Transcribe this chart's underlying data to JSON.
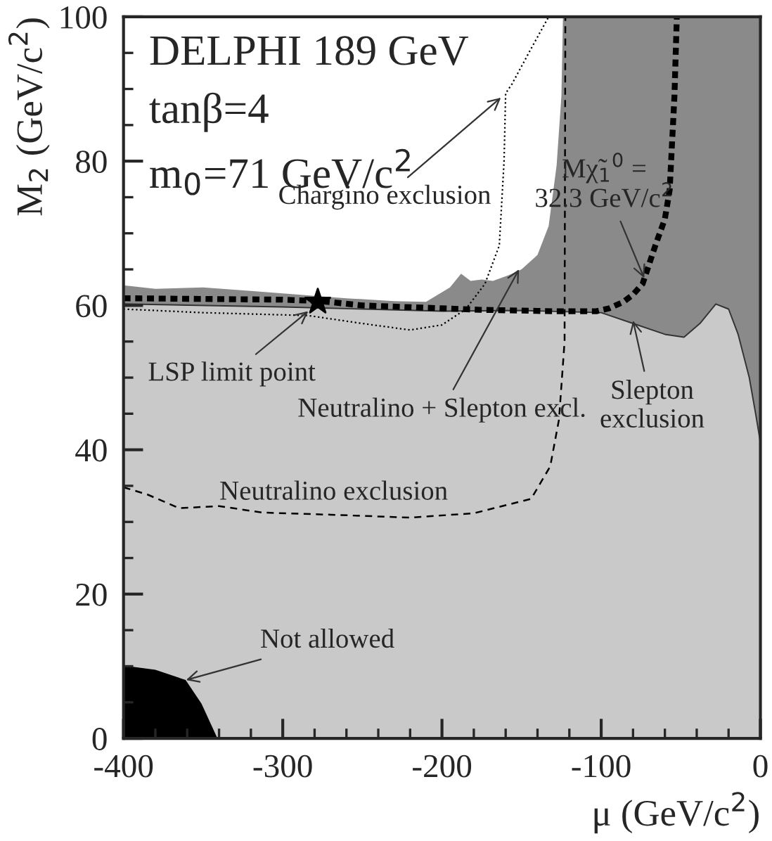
{
  "chart_data": {
    "type": "area",
    "xlabel": "μ (GeV/c$^{2}$)",
    "ylabel": "M$_{2}$ (GeV/c$^{2}$)",
    "xlim": [
      -400,
      0
    ],
    "ylim": [
      0,
      100
    ],
    "xticks": [
      -400,
      {
        "value": -380,
        "label": null
      },
      {
        "value": -360,
        "label": null
      },
      {
        "value": -340,
        "label": null
      },
      {
        "value": -320,
        "label": null
      },
      -300,
      {
        "value": -280,
        "label": null
      },
      {
        "value": -260,
        "label": null
      },
      {
        "value": -240,
        "label": null
      },
      {
        "value": -220,
        "label": null
      },
      -200,
      {
        "value": -180,
        "label": null
      },
      {
        "value": -160,
        "label": null
      },
      {
        "value": -140,
        "label": null
      },
      {
        "value": -120,
        "label": null
      },
      -100,
      {
        "value": -80,
        "label": null
      },
      {
        "value": -60,
        "label": null
      },
      {
        "value": -40,
        "label": null
      },
      {
        "value": -20,
        "label": null
      },
      0
    ],
    "yticks": [
      0,
      {
        "value": 5,
        "label": null
      },
      {
        "value": 10,
        "label": null
      },
      {
        "value": 15,
        "label": null
      },
      20,
      {
        "value": 25,
        "label": null
      },
      {
        "value": 30,
        "label": null
      },
      {
        "value": 35,
        "label": null
      },
      40,
      {
        "value": 45,
        "label": null
      },
      {
        "value": 50,
        "label": null
      },
      {
        "value": 55,
        "label": null
      },
      60,
      {
        "value": 65,
        "label": null
      },
      {
        "value": 70,
        "label": null
      },
      {
        "value": 75,
        "label": null
      },
      80,
      {
        "value": 85,
        "label": null
      },
      {
        "value": 90,
        "label": null
      },
      {
        "value": 95,
        "label": null
      },
      100
    ],
    "series": [
      {
        "color": "#8a8a8a",
        "x": [
          -400,
          -380,
          -350,
          -320,
          -290,
          -260,
          -230,
          -210,
          -195,
          -188,
          -182,
          -175,
          -168,
          -158,
          -150,
          -140,
          -133,
          -128,
          -125,
          -124,
          0
        ],
        "values": [
          62.8,
          62.3,
          62.5,
          62.0,
          61.5,
          61.0,
          60.6,
          60.5,
          62.5,
          64.4,
          63.4,
          63.6,
          63.4,
          64.2,
          65,
          67,
          71,
          79.4,
          89,
          100,
          100
        ]
      },
      {
        "color": "#c9c9c9",
        "x": [
          -400,
          -300,
          -200,
          -150,
          -100,
          -80,
          -60,
          -48,
          -38,
          -28,
          -20,
          -14,
          -7,
          -3,
          0
        ],
        "values": [
          60.2,
          59.8,
          59.2,
          59.3,
          59,
          57.5,
          56,
          55.6,
          57.5,
          60.2,
          59.5,
          56,
          50,
          45,
          41
        ]
      },
      {
        "color": "#000000",
        "x": [
          -400,
          -380,
          -361,
          -351,
          -341
        ],
        "values": [
          10.1,
          9.5,
          8.1,
          4.8,
          0
        ]
      },
      {
        "type": "line",
        "color": "#000000",
        "line_style": "dotted",
        "x": [
          -400,
          -350,
          -284,
          -250,
          -220,
          -200,
          -185,
          -173,
          -164,
          -161,
          -160,
          -156,
          -144,
          -133
        ],
        "values": [
          59.5,
          59.0,
          58.6,
          57.5,
          56.6,
          57.3,
          59.5,
          63,
          68.3,
          80,
          89.4,
          90.7,
          95.6,
          100
        ]
      },
      {
        "type": "line",
        "color": "#000000",
        "line_style": "dashed",
        "x": [
          -400,
          -385,
          -365,
          -340,
          -313,
          -270,
          -220,
          -180,
          -144,
          -132,
          -126.5,
          -123,
          -122.5
        ],
        "values": [
          34.8,
          33.8,
          31.9,
          32.2,
          31.3,
          31.0,
          30.6,
          31.2,
          33.2,
          37.7,
          44.2,
          55,
          100
        ]
      },
      {
        "type": "line",
        "color": "#000000",
        "line_style": "dashed",
        "x": [
          -400,
          -300,
          -276,
          -250,
          -200,
          -176,
          -130,
          -103,
          -95,
          -86,
          -80,
          -74,
          -66,
          -60,
          -57,
          -54,
          -52.5
        ],
        "values": [
          61,
          60.8,
          60.6,
          60.0,
          59.6,
          59.4,
          59.2,
          59.2,
          59.6,
          60.5,
          61.5,
          63,
          68.3,
          72,
          76,
          89,
          100
        ]
      },
      {
        "type": "scatter",
        "color": "#000000",
        "marker": "star",
        "x": [
          -278
        ],
        "values": [
          60.5
        ]
      }
    ],
    "annotations": [
      "DELPHI 189 GeV",
      "tanβ=4",
      "m$_{0}$=71 GeV/c$^{2}$",
      {
        "text": "Chargino exclusion",
        "x": -163,
        "y": 88.8
      },
      {
        "text": "LSP limit point",
        "x": -284,
        "y": 59.2
      },
      {
        "text": "Neutralino + Slepton excl.",
        "x": -151.6,
        "y": 65
      },
      {
        "text": "Slepton\nexclusion",
        "x": -80,
        "y": 57.9
      },
      {
        "text": "Mχ̃$_{1}$$^{0}$ =\n32.3 GeV/c$^{2}$",
        "x": -73,
        "y": 63.8
      },
      "Neutralino exclusion",
      {
        "text": "Not allowed",
        "x": -360.7,
        "y": 8.1
      }
    ],
    "grid": false,
    "legend": false
  }
}
